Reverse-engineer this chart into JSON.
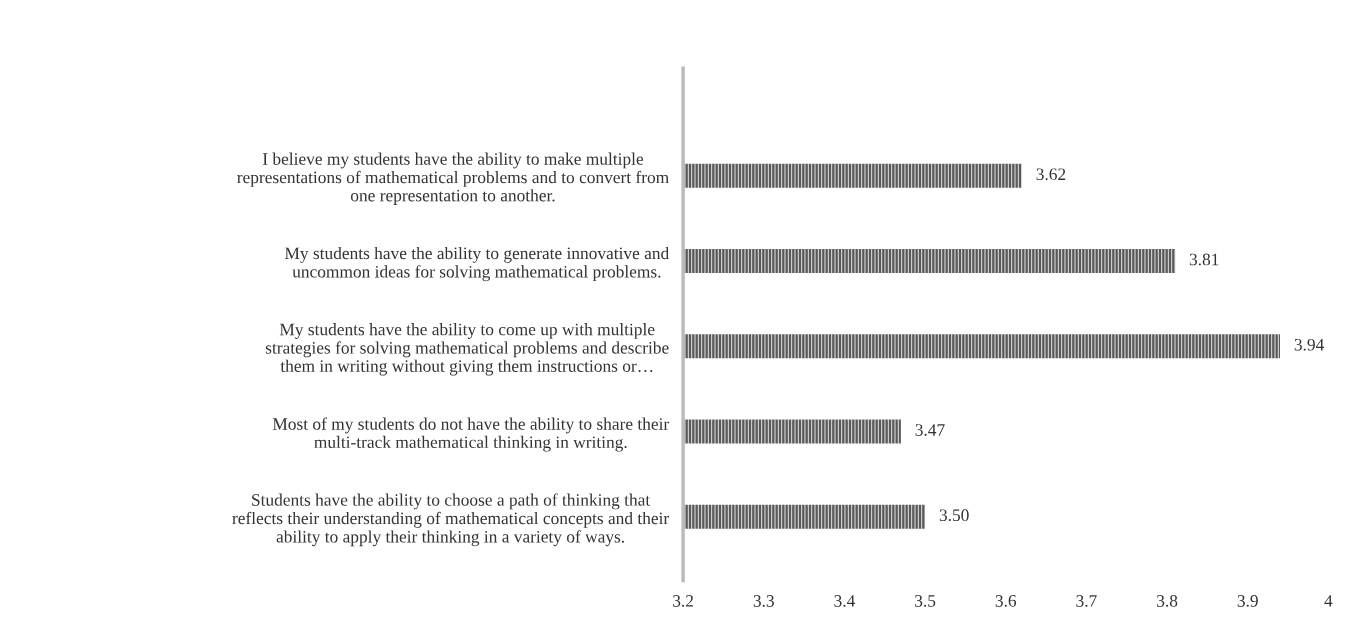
{
  "chart_data": {
    "type": "bar",
    "orientation": "horizontal",
    "categories": [
      "I believe my students have the ability to make multiple\nrepresentations of mathematical problems and to convert from\none representation to another.",
      "My students have the ability to generate innovative and\nuncommon ideas for solving mathematical problems.",
      "My students have the ability to come up with multiple\nstrategies for solving mathematical problems and describe\nthem in writing without giving them instructions or…",
      "Most of my students do not have the ability to share their\nmulti-track mathematical thinking in writing.",
      "Students have the ability to choose a path of thinking that\nreflects their understanding of mathematical concepts and their\nability to apply their thinking in a variety of ways."
    ],
    "values": [
      3.62,
      3.81,
      3.94,
      3.47,
      3.5
    ],
    "value_labels": [
      "3.62",
      "3.81",
      "3.94",
      "3.47",
      "3.50"
    ],
    "color": "#5a5a5a",
    "xlim": [
      3.2,
      4
    ],
    "xticks": [
      3.2,
      3.3,
      3.4,
      3.5,
      3.6,
      3.7,
      3.8,
      3.9,
      4
    ],
    "grid": false,
    "legend": false
  }
}
